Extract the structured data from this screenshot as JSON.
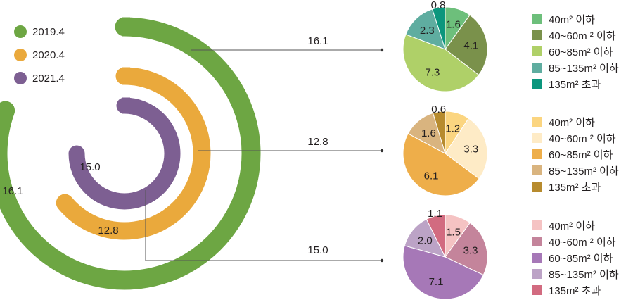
{
  "chart_data": [
    {
      "type": "radial-bar",
      "legend": [
        {
          "label": "2019.4",
          "color": "#6da643"
        },
        {
          "label": "2020.4",
          "color": "#eaa93c"
        },
        {
          "label": "2021.4",
          "color": "#7d5f92"
        }
      ],
      "series": [
        {
          "name": "2019.4",
          "value": 16.1,
          "color": "#6da643"
        },
        {
          "name": "2020.4",
          "value": 12.8,
          "color": "#eaa93c"
        },
        {
          "name": "2021.4",
          "value": 15.0,
          "color": "#7d5f92"
        }
      ],
      "ring_labels": [
        "16.1",
        "12.8",
        "15.0"
      ],
      "callout_labels": [
        "16.1",
        "12.8",
        "15.0"
      ]
    },
    {
      "type": "pie",
      "series_name": "2019.4",
      "slices": [
        {
          "label": "1.6",
          "value": 1.6,
          "color": "#6dbf7b"
        },
        {
          "label": "4.1",
          "value": 4.1,
          "color": "#7a914b"
        },
        {
          "label": "7.3",
          "value": 7.3,
          "color": "#afd068"
        },
        {
          "label": "2.3",
          "value": 2.3,
          "color": "#5fada0"
        },
        {
          "label": "0.8",
          "value": 0.8,
          "color": "#0b967d"
        }
      ],
      "legend": [
        {
          "label": "40m² 이하",
          "color": "#6dbf7b"
        },
        {
          "label": "40~60m ² 이하",
          "color": "#7a914b"
        },
        {
          "label": "60~85m² 이하",
          "color": "#afd068"
        },
        {
          "label": "85~135m² 이하",
          "color": "#5fada0"
        },
        {
          "label": "135m² 초과",
          "color": "#0b967d"
        }
      ]
    },
    {
      "type": "pie",
      "series_name": "2020.4",
      "slices": [
        {
          "label": "1.2",
          "value": 1.2,
          "color": "#fbd580"
        },
        {
          "label": "3.3",
          "value": 3.3,
          "color": "#feebc6"
        },
        {
          "label": "6.1",
          "value": 6.1,
          "color": "#eeae4a"
        },
        {
          "label": "1.6",
          "value": 1.6,
          "color": "#d9b47f"
        },
        {
          "label": "0.6",
          "value": 0.6,
          "color": "#b78b2e"
        }
      ],
      "legend": [
        {
          "label": "40m² 이하",
          "color": "#fbd580"
        },
        {
          "label": "40~60m ² 이하",
          "color": "#feebc6"
        },
        {
          "label": "60~85m² 이하",
          "color": "#eeae4a"
        },
        {
          "label": "85~135m² 이하",
          "color": "#d9b47f"
        },
        {
          "label": "135m² 초과",
          "color": "#b78b2e"
        }
      ]
    },
    {
      "type": "pie",
      "series_name": "2021.4",
      "slices": [
        {
          "label": "1.5",
          "value": 1.5,
          "color": "#f5c3c3"
        },
        {
          "label": "3.3",
          "value": 3.3,
          "color": "#c4849b"
        },
        {
          "label": "7.1",
          "value": 7.1,
          "color": "#a678b7"
        },
        {
          "label": "2.0",
          "value": 2.0,
          "color": "#bca3c6"
        },
        {
          "label": "1.1",
          "value": 1.1,
          "color": "#d26b80"
        }
      ],
      "legend": [
        {
          "label": "40m² 이하",
          "color": "#f5c3c3"
        },
        {
          "label": "40~60m ² 이하",
          "color": "#c4849b"
        },
        {
          "label": "60~85m² 이하",
          "color": "#a678b7"
        },
        {
          "label": "85~135m² 이하",
          "color": "#bca3c6"
        },
        {
          "label": "135m² 초과",
          "color": "#d26b80"
        }
      ]
    }
  ]
}
